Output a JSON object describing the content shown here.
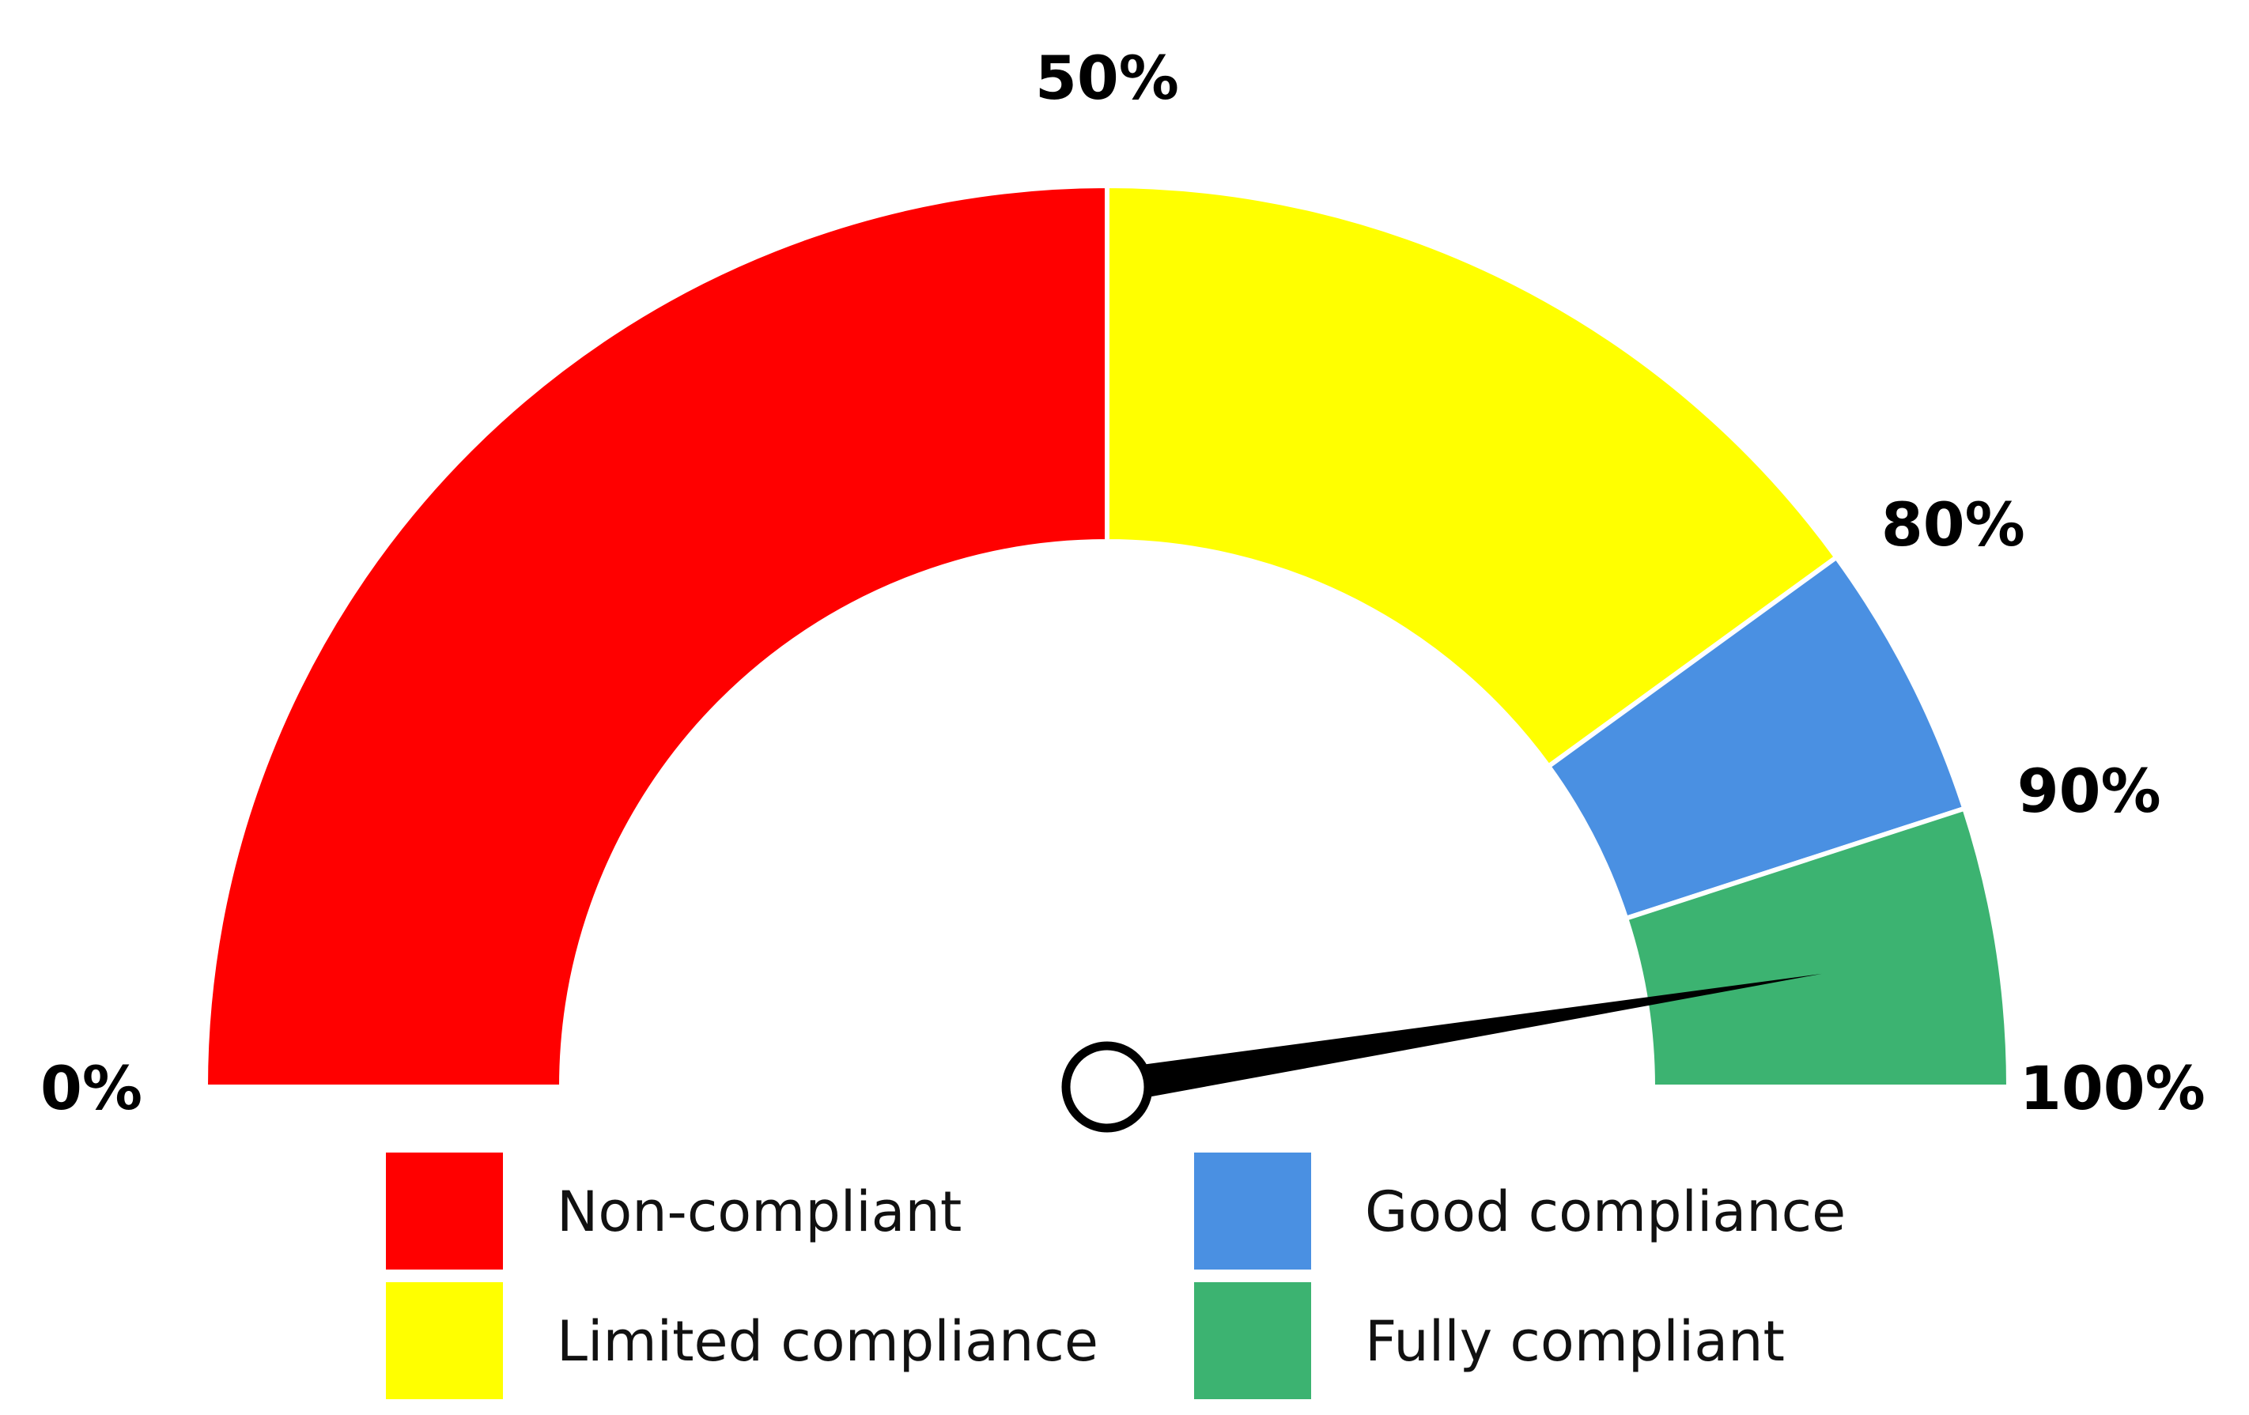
{
  "chart_data": {
    "type": "gauge",
    "range": [
      0,
      100
    ],
    "unit": "%",
    "needle_value": 95,
    "bands": [
      {
        "name": "Non-compliant",
        "from": 0,
        "to": 50,
        "color": "#ff0000"
      },
      {
        "name": "Limited compliance",
        "from": 50,
        "to": 80,
        "color": "#ffff00"
      },
      {
        "name": "Good compliance",
        "from": 80,
        "to": 90,
        "color": "#4a90e2"
      },
      {
        "name": "Fully compliant",
        "from": 90,
        "to": 100,
        "color": "#3cb371"
      }
    ],
    "tick_labels": [
      {
        "value": 0,
        "label": "0%"
      },
      {
        "value": 50,
        "label": "50%"
      },
      {
        "value": 80,
        "label": "80%"
      },
      {
        "value": 90,
        "label": "90%"
      },
      {
        "value": 100,
        "label": "100%"
      }
    ],
    "legend": {
      "placement": "bottom",
      "columns": 2,
      "entries": [
        "Non-compliant",
        "Limited compliance",
        "Good compliance",
        "Fully compliant"
      ]
    }
  }
}
